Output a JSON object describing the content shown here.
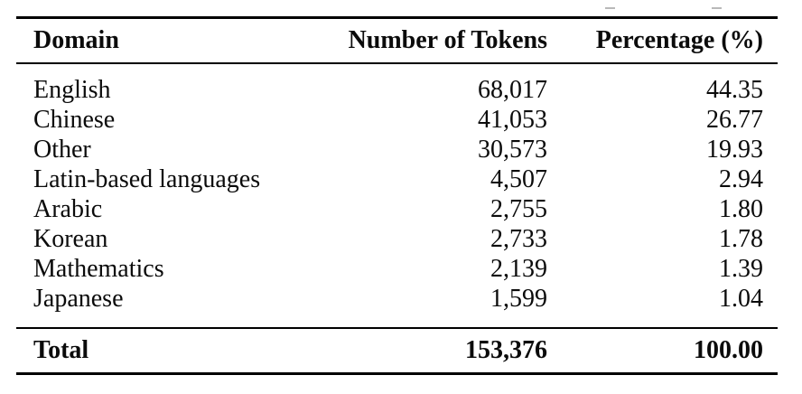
{
  "table": {
    "columns": [
      {
        "label": "Domain"
      },
      {
        "label": "Number of Tokens"
      },
      {
        "label": "Percentage (%)"
      }
    ],
    "rows": [
      {
        "domain": "English",
        "tokens": "68,017",
        "percentage": "44.35"
      },
      {
        "domain": "Chinese",
        "tokens": "41,053",
        "percentage": "26.77"
      },
      {
        "domain": "Other",
        "tokens": "30,573",
        "percentage": "19.93"
      },
      {
        "domain": "Latin-based languages",
        "tokens": "4,507",
        "percentage": "2.94"
      },
      {
        "domain": "Arabic",
        "tokens": "2,755",
        "percentage": "1.80"
      },
      {
        "domain": "Korean",
        "tokens": "2,733",
        "percentage": "1.78"
      },
      {
        "domain": "Mathematics",
        "tokens": "2,139",
        "percentage": "1.39"
      },
      {
        "domain": "Japanese",
        "tokens": "1,599",
        "percentage": "1.04"
      }
    ],
    "total": {
      "domain": "Total",
      "tokens": "153,376",
      "percentage": "100.00"
    }
  },
  "colors": {
    "text": "#0b0b0b",
    "background": "#ffffff",
    "rule": "#000000"
  }
}
